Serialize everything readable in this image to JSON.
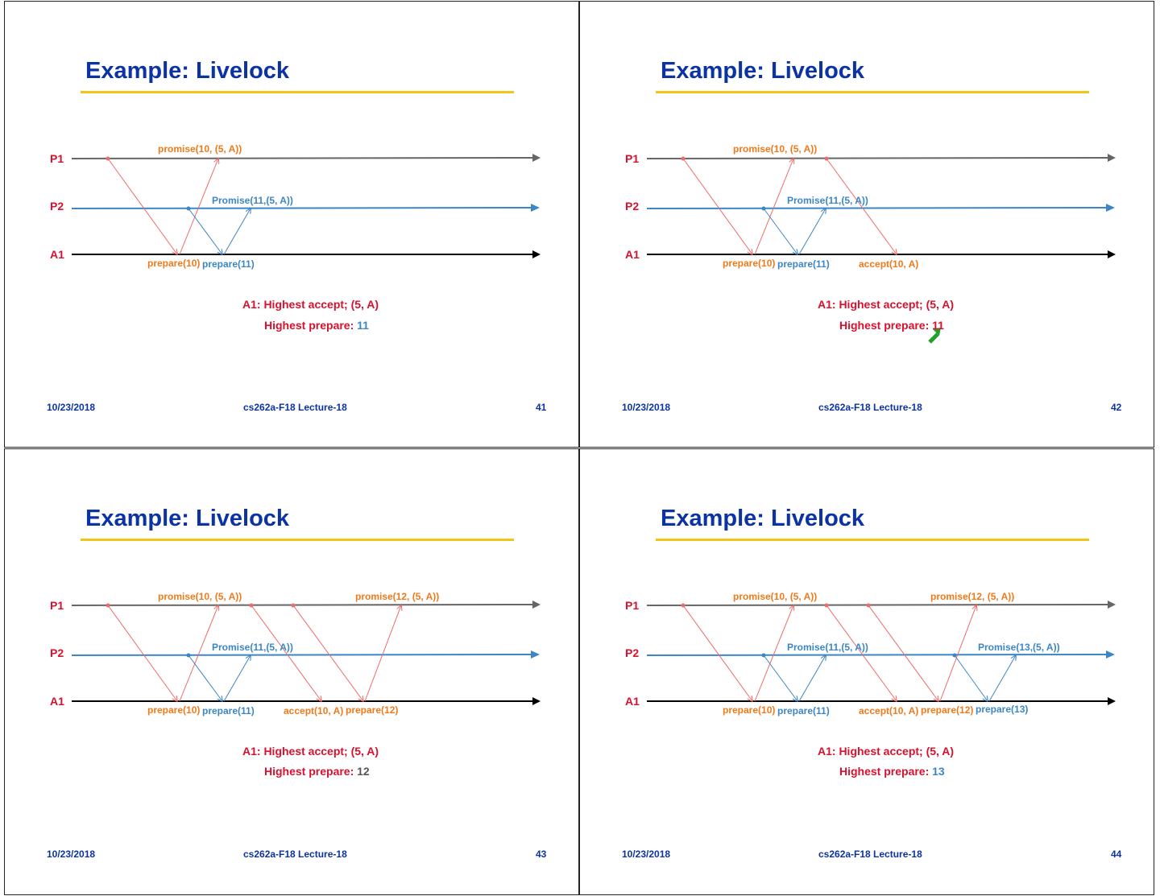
{
  "colors": {
    "title": "#0b33a3",
    "rule": "#f2c418",
    "process_label": "#d7112e",
    "orange_msg": "#f07a1a",
    "blue_msg": "#3d86c6",
    "red_arrow": "#ef6a6a",
    "p1_line": "#666666",
    "p2_line": "#3d86c6",
    "a1_line": "#000000",
    "gray_value": "#555555",
    "pointer": "#21a02c"
  },
  "slides": [
    {
      "title": "Example: Livelock",
      "process_labels": [
        "P1",
        "P2",
        "A1"
      ],
      "message_labels": [
        {
          "text": "promise(10, (5, A))",
          "color": "orange"
        },
        {
          "text": "Promise(11,(5, A))",
          "color": "blue"
        },
        {
          "text": "prepare(10)",
          "color": "orange"
        },
        {
          "text": "prepare(11)",
          "color": "blue"
        }
      ],
      "info": {
        "line1": "A1: Highest accept; (5, A)",
        "line2_label": "Highest prepare: ",
        "line2_value": "11",
        "value_color": "blue"
      },
      "footer": {
        "date": "10/23/2018",
        "course": "cs262a-F18 Lecture-18",
        "page": "41"
      }
    },
    {
      "title": "Example: Livelock",
      "process_labels": [
        "P1",
        "P2",
        "A1"
      ],
      "message_labels": [
        {
          "text": "promise(10, (5, A))",
          "color": "orange"
        },
        {
          "text": "Promise(11,(5, A))",
          "color": "blue"
        },
        {
          "text": "prepare(10)",
          "color": "orange"
        },
        {
          "text": "prepare(11)",
          "color": "blue"
        },
        {
          "text": "accept(10, A)",
          "color": "orange"
        }
      ],
      "info": {
        "line1": "A1: Highest accept; (5, A)",
        "line2_label": "Highest prepare: ",
        "line2_value": "11",
        "value_color": "red",
        "pointer": "green-arrow-icon"
      },
      "footer": {
        "date": "10/23/2018",
        "course": "cs262a-F18 Lecture-18",
        "page": "42"
      }
    },
    {
      "title": "Example: Livelock",
      "process_labels": [
        "P1",
        "P2",
        "A1"
      ],
      "message_labels": [
        {
          "text": "promise(10, (5, A))",
          "color": "orange"
        },
        {
          "text": "promise(12, (5, A))",
          "color": "orange"
        },
        {
          "text": "Promise(11,(5, A))",
          "color": "blue"
        },
        {
          "text": "prepare(10)",
          "color": "orange"
        },
        {
          "text": "prepare(11)",
          "color": "blue"
        },
        {
          "text": "accept(10, A)",
          "color": "orange"
        },
        {
          "text": "prepare(12)",
          "color": "orange"
        }
      ],
      "info": {
        "line1": "A1: Highest accept; (5, A)",
        "line2_label": "Highest prepare: ",
        "line2_value": "12",
        "value_color": "gray"
      },
      "footer": {
        "date": "10/23/2018",
        "course": "cs262a-F18 Lecture-18",
        "page": "43"
      }
    },
    {
      "title": "Example: Livelock",
      "process_labels": [
        "P1",
        "P2",
        "A1"
      ],
      "message_labels": [
        {
          "text": "promise(10, (5, A))",
          "color": "orange"
        },
        {
          "text": "promise(12, (5, A))",
          "color": "orange"
        },
        {
          "text": "Promise(11,(5, A))",
          "color": "blue"
        },
        {
          "text": "Promise(13,(5, A))",
          "color": "blue"
        },
        {
          "text": "prepare(10)",
          "color": "orange"
        },
        {
          "text": "prepare(11)",
          "color": "blue"
        },
        {
          "text": "accept(10, A)",
          "color": "orange"
        },
        {
          "text": "prepare(12)",
          "color": "orange"
        },
        {
          "text": "prepare(13)",
          "color": "blue"
        }
      ],
      "info": {
        "line1": "A1: Highest accept; (5, A)",
        "line2_label": "Highest prepare: ",
        "line2_value": "13",
        "value_color": "blue"
      },
      "footer": {
        "date": "10/23/2018",
        "course": "cs262a-F18 Lecture-18",
        "page": "44"
      }
    }
  ]
}
